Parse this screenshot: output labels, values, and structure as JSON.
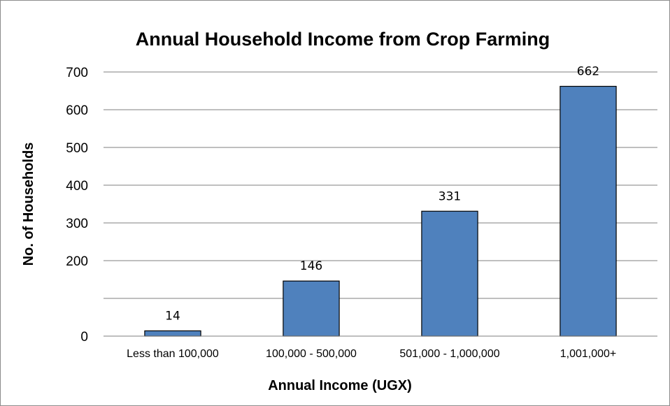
{
  "chart_data": {
    "type": "bar",
    "title": "Annual Household Income from Crop Farming",
    "xlabel": "Annual Income (UGX)",
    "ylabel": "No. of Households",
    "categories": [
      "Less than 100,000",
      "100,000 - 500,000",
      "501,000 - 1,000,000",
      "1,001,000+"
    ],
    "values": [
      14,
      146,
      331,
      662
    ],
    "data_labels": [
      "14",
      "146",
      "331",
      "662"
    ],
    "ylim": [
      0,
      700
    ],
    "yticks": [
      0,
      100,
      200,
      300,
      400,
      500,
      600,
      700
    ],
    "ytick_labels": [
      "0",
      "",
      "200",
      "300",
      "400",
      "500",
      "600",
      "700"
    ],
    "grid": true,
    "legend": "none",
    "colors": {
      "bar_fill": "#4f81bd",
      "bar_stroke": "#000000",
      "grid": "#7f7f7f"
    }
  }
}
